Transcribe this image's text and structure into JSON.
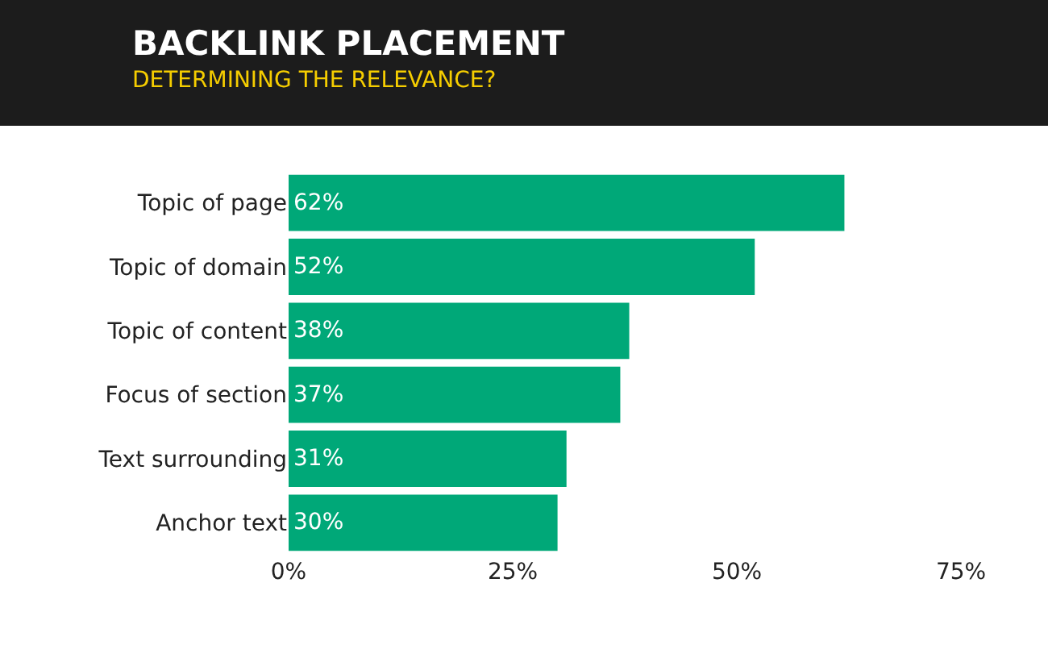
{
  "chart_data": {
    "type": "bar",
    "orientation": "horizontal",
    "title": "BACKLINK PLACEMENT",
    "subtitle": "DETERMINING THE RELEVANCE?",
    "categories": [
      "Topic of page",
      "Topic of domain",
      "Topic of content",
      "Focus of section",
      "Text surrounding",
      "Anchor text"
    ],
    "values": [
      62,
      52,
      38,
      37,
      31,
      30
    ],
    "value_labels": [
      "62%",
      "52%",
      "38%",
      "37%",
      "31%",
      "30%"
    ],
    "color": "#00a878",
    "xlim": [
      0,
      75
    ],
    "xticks": [
      {
        "value": 0,
        "label": "0%"
      },
      {
        "value": 25,
        "label": "25%"
      },
      {
        "value": 50,
        "label": "50%"
      },
      {
        "value": 75,
        "label": "75%"
      }
    ],
    "grid": false
  }
}
